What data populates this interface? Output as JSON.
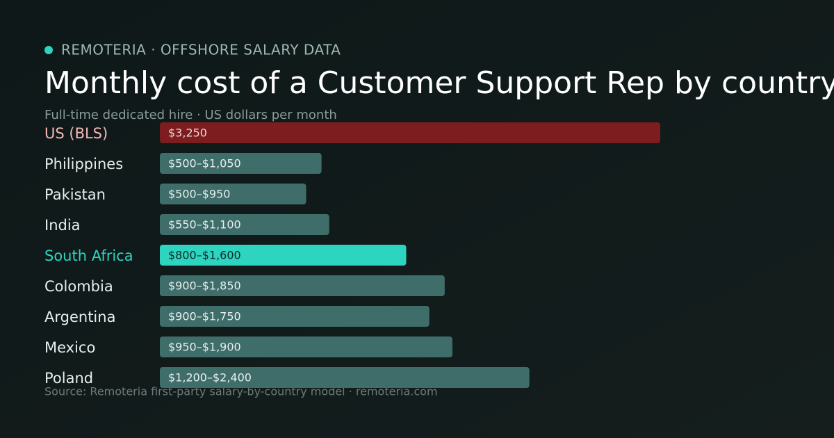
{
  "chart_data": {
    "type": "bar",
    "eyebrow": "REMOTERIA · OFFSHORE SALARY DATA",
    "title": "Monthly cost of a Customer Support Rep by country",
    "subtitle": "Full-time dedicated hire · US dollars per month",
    "source": "Source: Remoteria first-party salary-by-country model · remoteria.com",
    "categories": [
      "US (BLS)",
      "Philippines",
      "Pakistan",
      "India",
      "South Africa",
      "Colombia",
      "Argentina",
      "Mexico",
      "Poland"
    ],
    "values": [
      3250,
      1050,
      950,
      1100,
      1600,
      1850,
      1750,
      1900,
      2400
    ],
    "value_labels": [
      "$3,250",
      "$500–$1,050",
      "$500–$950",
      "$550–$1,100",
      "$800–$1,600",
      "$900–$1,850",
      "$900–$1,750",
      "$950–$1,900",
      "$1,200–$2,400"
    ],
    "colors": [
      "#7e1d1f",
      "#3f6e6a",
      "#3f6e6a",
      "#3f6e6a",
      "#2dd4bf",
      "#3f6e6a",
      "#3f6e6a",
      "#3f6e6a",
      "#3f6e6a"
    ],
    "label_colors": [
      "#f5b7b7",
      "#e8eeee",
      "#e8eeee",
      "#e8eeee",
      "#2dd4bf",
      "#e8eeee",
      "#e8eeee",
      "#e8eeee",
      "#e8eeee"
    ],
    "value_label_colors": [
      "#f0d6d6",
      "#e8eeee",
      "#e8eeee",
      "#e8eeee",
      "#0f2a27",
      "#e8eeee",
      "#e8eeee",
      "#e8eeee",
      "#e8eeee"
    ]
  }
}
